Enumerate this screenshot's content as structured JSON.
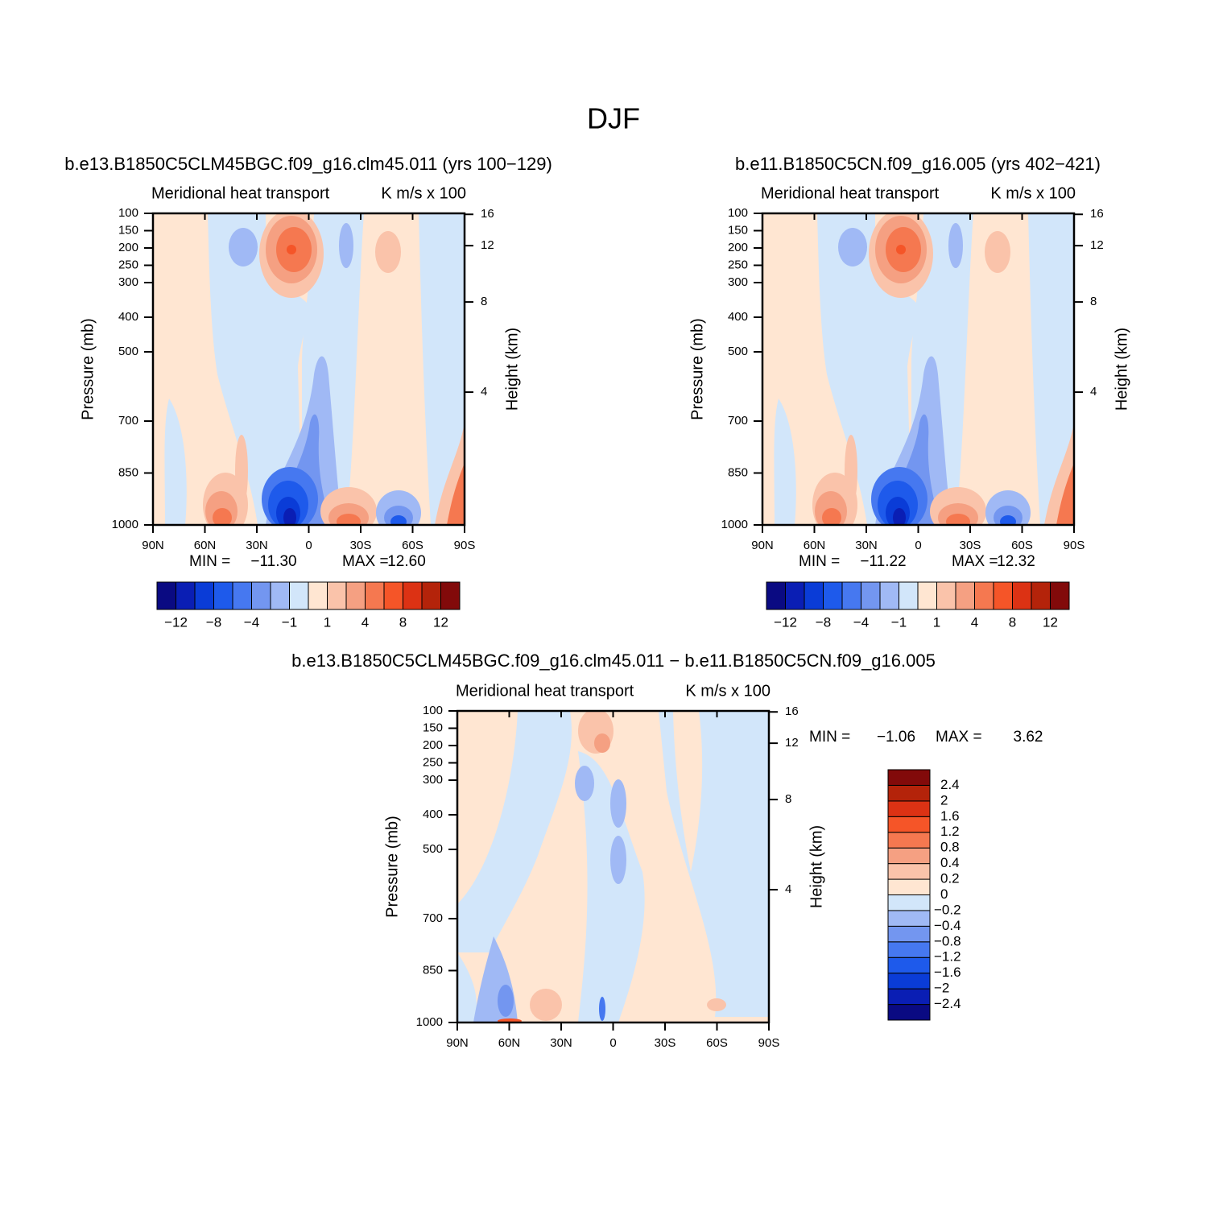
{
  "title": "DJF",
  "chart_data": [
    {
      "type": "contour",
      "title": "b.e13.B1850C5CLM45BGC.f09_g16.clm45.011 (yrs 100−129)",
      "left_string": "Meridional heat transport",
      "right_string": "K m/s x 100",
      "ylabel": "Pressure (mb)",
      "y2label": "Height (km)",
      "xlim": [
        90,
        -90
      ],
      "xticks": [
        {
          "value": 90,
          "label": "90N"
        },
        {
          "value": 60,
          "label": "60N"
        },
        {
          "value": 30,
          "label": "30N"
        },
        0,
        {
          "value": -30,
          "label": "30S"
        },
        {
          "value": -60,
          "label": "60S"
        },
        {
          "value": -90,
          "label": "90S"
        }
      ],
      "ylim": [
        1000,
        100
      ],
      "yticks": [
        100,
        150,
        200,
        250,
        300,
        400,
        500,
        700,
        850,
        1000
      ],
      "y2ticks": [
        4,
        8,
        12,
        16
      ],
      "min_text": "MIN =",
      "min": {
        "value": -11.3,
        "label": "−11.30"
      },
      "max_text": "MAX =",
      "max": {
        "value": 12.6,
        "label": "12.60"
      },
      "colorbar": "horizontal",
      "levels": [
        {
          "value": -12,
          "label": "−12"
        },
        null,
        {
          "value": -8,
          "label": "−8"
        },
        null,
        {
          "value": -4,
          "label": "−4"
        },
        null,
        {
          "value": -1,
          "label": "−1"
        },
        null,
        1,
        null,
        4,
        null,
        8,
        null,
        12
      ],
      "colors": [
        "#0a0a82",
        "#0a1eb4",
        "#0a3cd7",
        "#1e5aeb",
        "#4678f0",
        "#7396f0",
        "#a0b9f5",
        "#d2e6fa",
        "#ffe6d2",
        "#fac3aa",
        "#f5a082",
        "#f57850",
        "#f55528",
        "#dc3214",
        "#b4230a",
        "#820a0a"
      ]
    },
    {
      "type": "contour",
      "title": "b.e11.B1850C5CN.f09_g16.005 (yrs 402−421)",
      "left_string": "Meridional heat transport",
      "right_string": "K m/s x 100",
      "ylabel": "Pressure (mb)",
      "y2label": "Height (km)",
      "xlim": [
        90,
        -90
      ],
      "xticks": [
        {
          "value": 90,
          "label": "90N"
        },
        {
          "value": 60,
          "label": "60N"
        },
        {
          "value": 30,
          "label": "30N"
        },
        0,
        {
          "value": -30,
          "label": "30S"
        },
        {
          "value": -60,
          "label": "60S"
        },
        {
          "value": -90,
          "label": "90S"
        }
      ],
      "ylim": [
        1000,
        100
      ],
      "yticks": [
        100,
        150,
        200,
        250,
        300,
        400,
        500,
        700,
        850,
        1000
      ],
      "y2ticks": [
        4,
        8,
        12,
        16
      ],
      "min_text": "MIN =",
      "min": {
        "value": -11.22,
        "label": "−11.22"
      },
      "max_text": "MAX =",
      "max": 12.32,
      "colorbar": "horizontal",
      "levels": [
        {
          "value": -12,
          "label": "−12"
        },
        null,
        {
          "value": -8,
          "label": "−8"
        },
        null,
        {
          "value": -4,
          "label": "−4"
        },
        null,
        {
          "value": -1,
          "label": "−1"
        },
        null,
        1,
        null,
        4,
        null,
        8,
        null,
        12
      ],
      "colors": [
        "#0a0a82",
        "#0a1eb4",
        "#0a3cd7",
        "#1e5aeb",
        "#4678f0",
        "#7396f0",
        "#a0b9f5",
        "#d2e6fa",
        "#ffe6d2",
        "#fac3aa",
        "#f5a082",
        "#f57850",
        "#f55528",
        "#dc3214",
        "#b4230a",
        "#820a0a"
      ]
    },
    {
      "type": "contour",
      "title": "b.e13.B1850C5CLM45BGC.f09_g16.clm45.011 − b.e11.B1850C5CN.f09_g16.005",
      "left_string": "Meridional heat transport",
      "right_string": "K m/s x 100",
      "ylabel": "Pressure (mb)",
      "y2label": "Height (km)",
      "xlim": [
        90,
        -90
      ],
      "xticks": [
        {
          "value": 90,
          "label": "90N"
        },
        {
          "value": 60,
          "label": "60N"
        },
        {
          "value": 30,
          "label": "30N"
        },
        0,
        {
          "value": -30,
          "label": "30S"
        },
        {
          "value": -60,
          "label": "60S"
        },
        {
          "value": -90,
          "label": "90S"
        }
      ],
      "ylim": [
        1000,
        100
      ],
      "yticks": [
        100,
        150,
        200,
        250,
        300,
        400,
        500,
        700,
        850,
        1000
      ],
      "y2ticks": [
        4,
        8,
        12,
        16
      ],
      "min_text": "MIN =",
      "min": {
        "value": -1.06,
        "label": "−1.06"
      },
      "max_text": "MAX =",
      "max": 3.62,
      "colorbar": "vertical",
      "levels": [
        {
          "value": -2.4,
          "label": "−2.4"
        },
        {
          "value": -2,
          "label": "−2"
        },
        {
          "value": -1.6,
          "label": "−1.6"
        },
        {
          "value": -1.2,
          "label": "−1.2"
        },
        {
          "value": -0.8,
          "label": "−0.8"
        },
        {
          "value": -0.4,
          "label": "−0.4"
        },
        {
          "value": -0.2,
          "label": "−0.2"
        },
        0,
        0.2,
        0.4,
        0.8,
        1.2,
        1.6,
        2,
        2.4
      ],
      "colors": [
        "#0a0a82",
        "#0a1eb4",
        "#0a3cd7",
        "#1e5aeb",
        "#4678f0",
        "#7396f0",
        "#a0b9f5",
        "#d2e6fa",
        "#ffe6d2",
        "#fac3aa",
        "#f5a082",
        "#f57850",
        "#f55528",
        "#dc3214",
        "#b4230a",
        "#820a0a"
      ]
    }
  ]
}
